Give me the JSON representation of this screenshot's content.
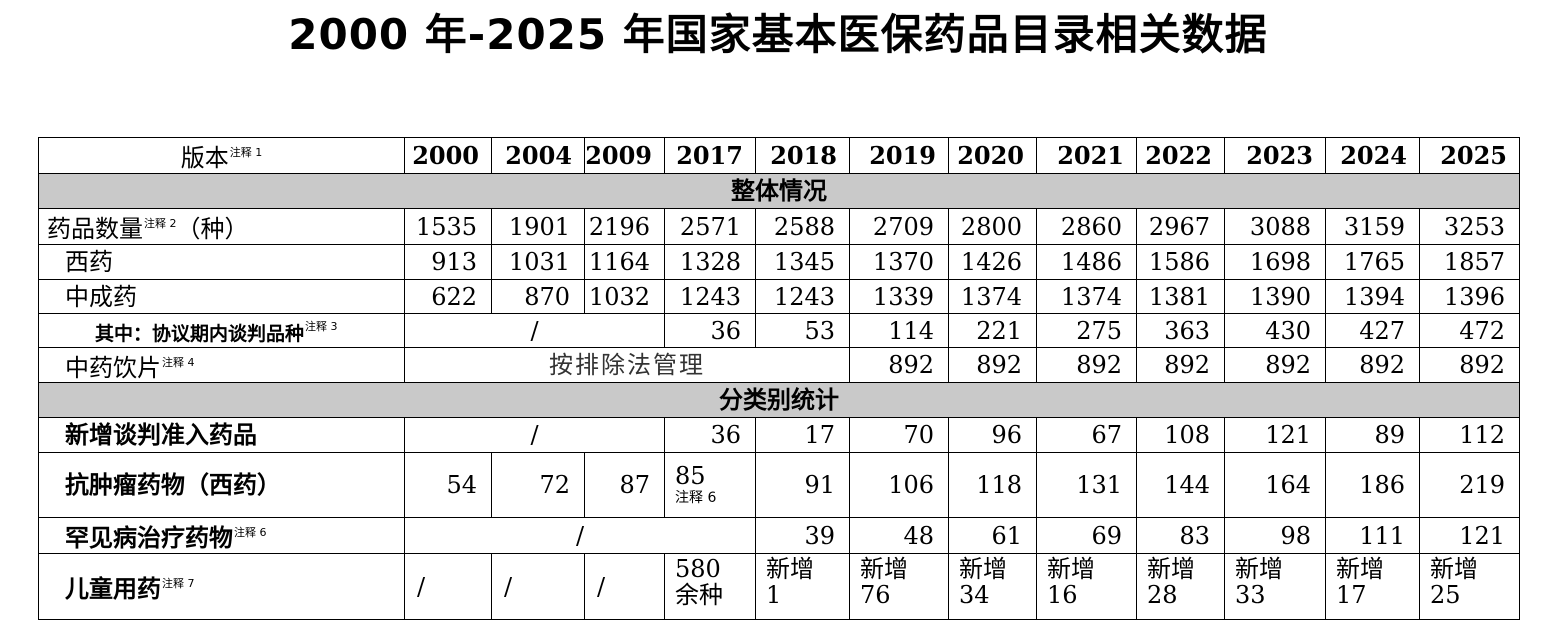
{
  "title": "2000 年-2025 年国家基本医保药品目录相关数据",
  "header": {
    "version_label": "版本",
    "version_note": "注释 1",
    "years": [
      "2000",
      "2004",
      "2009",
      "2017",
      "2018",
      "2019",
      "2020",
      "2021",
      "2022",
      "2023",
      "2024",
      "2025"
    ]
  },
  "sections": {
    "overall": "整体情况",
    "category": "分类别统计"
  },
  "rows": {
    "drug_count": {
      "label": "药品数量",
      "note": "注释 2",
      "suffix": "（种）",
      "values": [
        "1535",
        "1901",
        "2196",
        "2571",
        "2588",
        "2709",
        "2800",
        "2860",
        "2967",
        "3088",
        "3159",
        "3253"
      ]
    },
    "western": {
      "label": "西药",
      "values": [
        "913",
        "1031",
        "1164",
        "1328",
        "1345",
        "1370",
        "1426",
        "1486",
        "1586",
        "1698",
        "1765",
        "1857"
      ]
    },
    "tcm_patent": {
      "label": "中成药",
      "values": [
        "622",
        "870",
        "1032",
        "1243",
        "1243",
        "1339",
        "1374",
        "1374",
        "1381",
        "1390",
        "1394",
        "1396"
      ]
    },
    "negotiated": {
      "label": "其中：协议期内谈判品种",
      "note": "注释 3",
      "slash": "/",
      "values": [
        "36",
        "53",
        "114",
        "221",
        "275",
        "363",
        "430",
        "427",
        "472"
      ]
    },
    "tcm_pieces": {
      "label": "中药饮片",
      "note": "注释 4",
      "merged_text": "按排除法管理",
      "values": [
        "892",
        "892",
        "892",
        "892",
        "892",
        "892",
        "892"
      ]
    },
    "new_negotiated": {
      "label": "新增谈判准入药品",
      "slash": "/",
      "values": [
        "36",
        "17",
        "70",
        "96",
        "67",
        "108",
        "121",
        "89",
        "112"
      ]
    },
    "antitumor": {
      "label": "抗肿瘤药物（西药）",
      "values": [
        "54",
        "72",
        "87",
        "85",
        "91",
        "106",
        "118",
        "131",
        "144",
        "164",
        "186",
        "219"
      ],
      "v2017_note": "注释 6"
    },
    "rare_disease": {
      "label": "罕见病治疗药物",
      "note": "注释 6",
      "slash": "/",
      "values": [
        "39",
        "48",
        "61",
        "69",
        "83",
        "98",
        "111",
        "121"
      ]
    },
    "pediatric": {
      "label": "儿童用药",
      "note": "注释 7",
      "slash": "/",
      "v2017_a": "580",
      "v2017_b": "余种",
      "new_label": "新增",
      "new_values": [
        "1",
        "76",
        "34",
        "16",
        "28",
        "33",
        "17",
        "25"
      ]
    }
  }
}
